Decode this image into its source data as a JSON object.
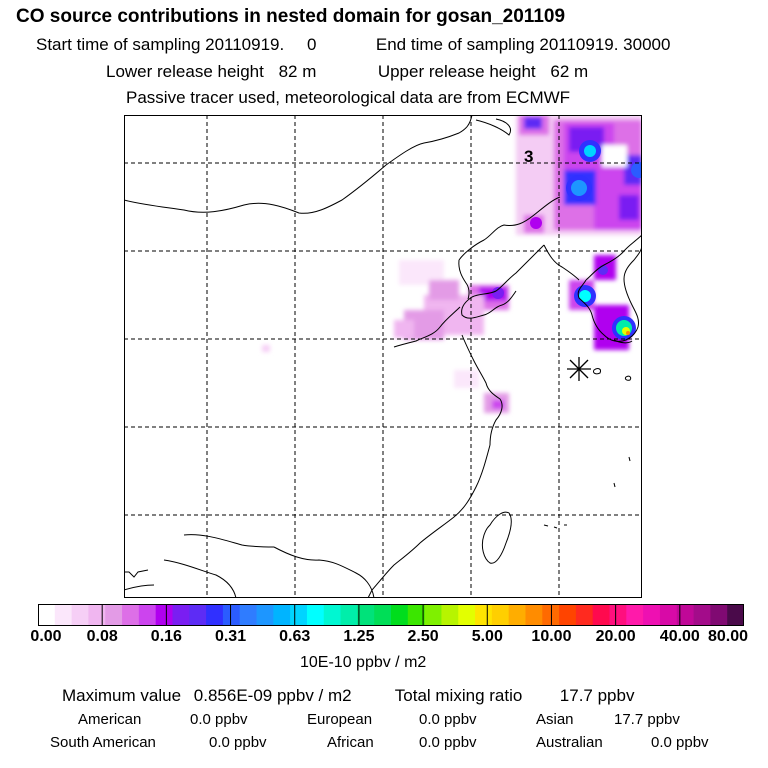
{
  "header": {
    "title": "CO  source contributions in nested domain for gosan_201109",
    "start_label": "Start time of sampling 20110919.",
    "start_value": "0",
    "end_label": "End time of sampling 20110919. 30000",
    "lower_label": "Lower release height",
    "lower_value": "82 m",
    "upper_label": "Upper release height",
    "upper_value": "62 m",
    "info": "Passive tracer used, meteorological data are from ECMWF"
  },
  "map": {
    "contour_label": "3",
    "station_marker": "station-star-icon"
  },
  "colorbar": {
    "colors": [
      "#ffffff",
      "#fbe7fb",
      "#f6cff6",
      "#f0b6f0",
      "#e39be6",
      "#dd6fe7",
      "#cc44ee",
      "#b000ef",
      "#7a1ef2",
      "#5d2cf5",
      "#3030ff",
      "#2b5cff",
      "#2f7cff",
      "#1d96ff",
      "#00b4ff",
      "#00d4ff",
      "#00ffff",
      "#00f7d2",
      "#00eeaa",
      "#00e27a",
      "#00de57",
      "#00dd1d",
      "#3be600",
      "#7ff000",
      "#b7f400",
      "#e3ff00",
      "#ffe400",
      "#ffcf00",
      "#ffad00",
      "#ff8c00",
      "#ff6a00",
      "#ff4400",
      "#ff2a1f",
      "#ff0a4e",
      "#ff0f7e",
      "#ff1aaa",
      "#ee10b2",
      "#d80aa7",
      "#c00898",
      "#a30c8a",
      "#800a72",
      "#4a0a4a"
    ],
    "tick_labels": [
      "0.00",
      "0.08",
      "0.16",
      "0.31",
      "0.63",
      "1.25",
      "2.50",
      "5.00",
      "10.00",
      "20.00",
      "40.00",
      "80.00"
    ],
    "units": "10E-10 ppbv / m2"
  },
  "summary": {
    "max_label": "Maximum value",
    "max_value": "0.856E-09 ppbv / m2",
    "total_label": "Total mixing ratio",
    "total_value": "17.7 ppbv",
    "regions": [
      {
        "name": "American",
        "value": "0.0 ppbv"
      },
      {
        "name": "European",
        "value": "0.0 ppbv"
      },
      {
        "name": "Asian",
        "value": "17.7 ppbv"
      },
      {
        "name": "South American",
        "value": "0.0 ppbv"
      },
      {
        "name": "African",
        "value": "0.0 ppbv"
      },
      {
        "name": "Australian",
        "value": "0.0 ppbv"
      }
    ]
  }
}
